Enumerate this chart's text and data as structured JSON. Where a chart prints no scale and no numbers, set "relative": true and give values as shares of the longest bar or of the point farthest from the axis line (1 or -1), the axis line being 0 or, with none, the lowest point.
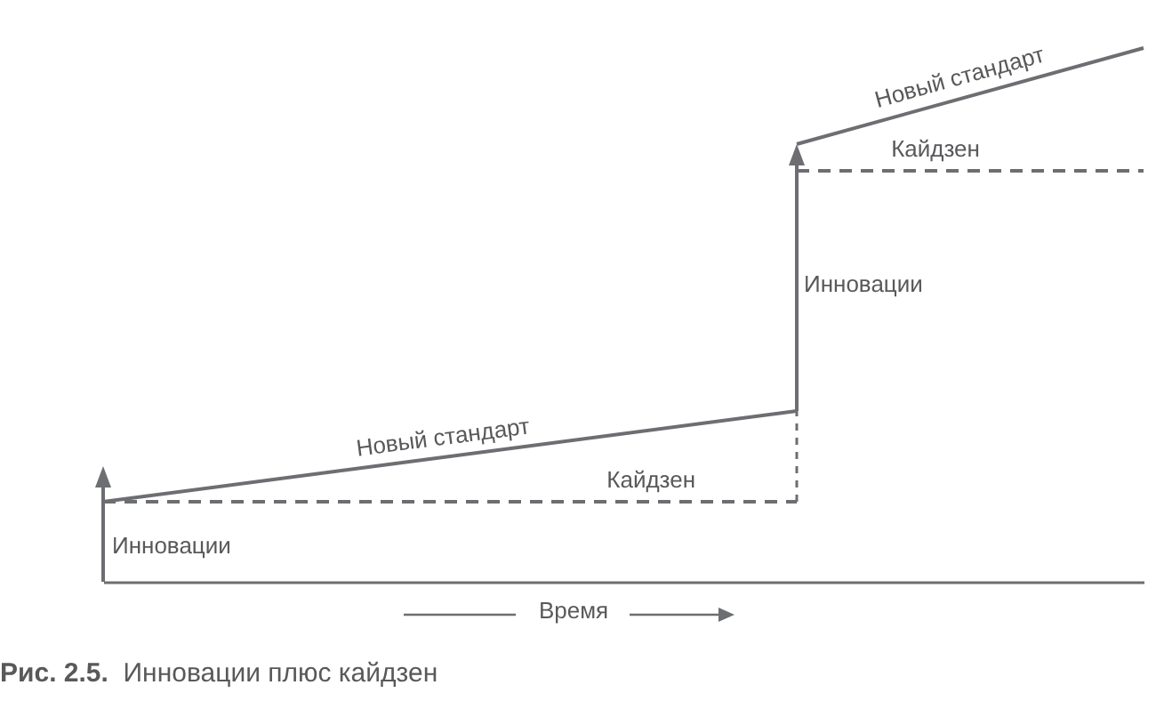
{
  "chart_data": {
    "type": "line",
    "relative": true,
    "categories": [
      null,
      null,
      null,
      null
    ],
    "xlabel": "Время",
    "series": [
      {
        "name": "Новый стандарт",
        "color": "#6d6e71",
        "line_style": "solid",
        "values": [
          0.15,
          0.235,
          0.32,
          null
        ]
      },
      {
        "name": "Кайдзен",
        "color": "#6d6e71",
        "line_style": "dashed",
        "values": [
          0.15,
          0.15,
          0.15,
          null
        ]
      },
      {
        "name": "Новый стандарт",
        "color": "#6d6e71",
        "line_style": "solid",
        "values": [
          null,
          null,
          0.82,
          1
        ]
      },
      {
        "name": "Кайдзен",
        "color": "#6d6e71",
        "line_style": "dashed",
        "values": [
          null,
          null,
          0.77,
          0.77
        ]
      }
    ],
    "annotations": [
      "Инновации",
      "Инновации",
      "Рис. 2.5. Инновации плюс кайдзен"
    ]
  }
}
